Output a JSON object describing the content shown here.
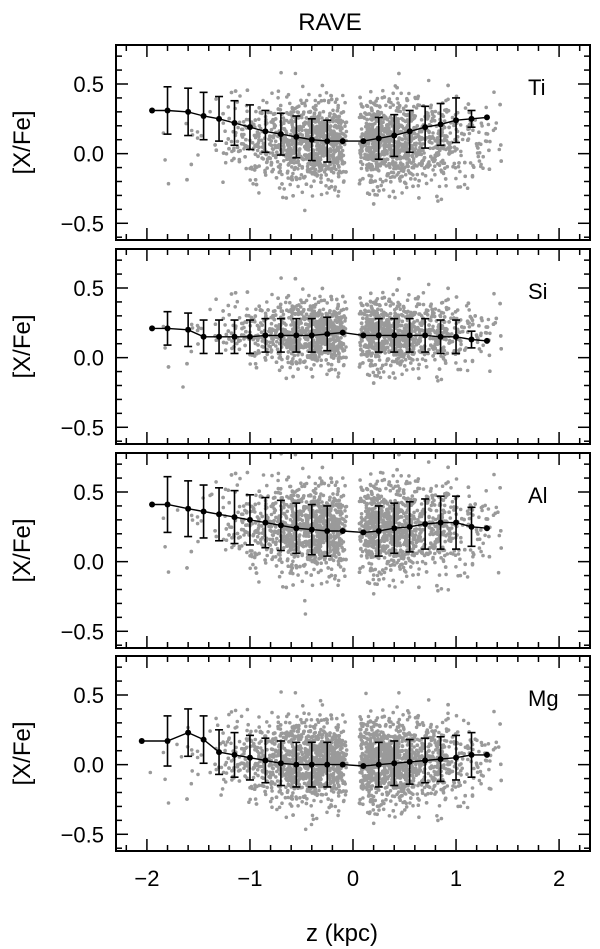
{
  "chart_data": {
    "type": "scatter",
    "title": "RAVE",
    "xlabel": "z (kpc)",
    "ylabel": "[X/Fe]",
    "xlim": [
      -2.3,
      2.3
    ],
    "ylim": [
      -0.62,
      0.78
    ],
    "xticks": [
      -2,
      -1,
      0,
      1,
      2
    ],
    "xticklabels": [
      "−2",
      "−1",
      "0",
      "1",
      "2"
    ],
    "yticks": [
      0.5,
      0.0,
      -0.5
    ],
    "yticklabels": [
      "0.5",
      "0.0",
      "−0.5"
    ],
    "grid": false,
    "panels": [
      {
        "label": "Ti",
        "cloud_center": 0.08,
        "cloud_spread": 0.15,
        "binned": {
          "x": [
            -1.95,
            -1.8,
            -1.6,
            -1.45,
            -1.3,
            -1.15,
            -1.0,
            -0.85,
            -0.7,
            -0.55,
            -0.4,
            -0.25,
            -0.1,
            0.1,
            0.25,
            0.4,
            0.55,
            0.7,
            0.85,
            1.0,
            1.15,
            1.3
          ],
          "y": [
            0.31,
            0.31,
            0.3,
            0.27,
            0.25,
            0.22,
            0.19,
            0.16,
            0.14,
            0.12,
            0.1,
            0.09,
            0.09,
            0.09,
            0.11,
            0.13,
            0.16,
            0.19,
            0.21,
            0.24,
            0.25,
            0.26
          ],
          "err": [
            0,
            0.17,
            0.17,
            0.17,
            0.16,
            0.16,
            0.16,
            0.15,
            0.15,
            0.15,
            0.15,
            0.15,
            0,
            0,
            0.15,
            0.15,
            0.15,
            0.15,
            0.15,
            0.16,
            0.06,
            0
          ]
        }
      },
      {
        "label": "Si",
        "cloud_center": 0.17,
        "cloud_spread": 0.12,
        "binned": {
          "x": [
            -1.95,
            -1.8,
            -1.6,
            -1.45,
            -1.3,
            -1.15,
            -1.0,
            -0.85,
            -0.7,
            -0.55,
            -0.4,
            -0.25,
            -0.1,
            0.1,
            0.25,
            0.4,
            0.55,
            0.7,
            0.85,
            1.0,
            1.15,
            1.3
          ],
          "y": [
            0.21,
            0.21,
            0.2,
            0.15,
            0.15,
            0.15,
            0.15,
            0.16,
            0.16,
            0.16,
            0.16,
            0.17,
            0.18,
            0.16,
            0.16,
            0.16,
            0.16,
            0.16,
            0.15,
            0.15,
            0.13,
            0.12
          ],
          "err": [
            0,
            0.12,
            0.12,
            0.12,
            0.12,
            0.12,
            0.12,
            0.12,
            0.12,
            0.12,
            0.12,
            0.12,
            0,
            0,
            0.12,
            0.12,
            0.12,
            0.12,
            0.12,
            0.12,
            0.06,
            0
          ]
        }
      },
      {
        "label": "Al",
        "cloud_center": 0.24,
        "cloud_spread": 0.16,
        "binned": {
          "x": [
            -1.95,
            -1.8,
            -1.6,
            -1.45,
            -1.3,
            -1.15,
            -1.0,
            -0.85,
            -0.7,
            -0.55,
            -0.4,
            -0.25,
            -0.1,
            0.1,
            0.25,
            0.4,
            0.55,
            0.7,
            0.85,
            1.0,
            1.15,
            1.3
          ],
          "y": [
            0.41,
            0.41,
            0.38,
            0.36,
            0.34,
            0.32,
            0.3,
            0.28,
            0.26,
            0.24,
            0.23,
            0.22,
            0.22,
            0.21,
            0.22,
            0.24,
            0.25,
            0.27,
            0.28,
            0.28,
            0.25,
            0.24
          ],
          "err": [
            0,
            0.2,
            0.2,
            0.19,
            0.19,
            0.19,
            0.18,
            0.18,
            0.18,
            0.18,
            0.18,
            0.18,
            0,
            0,
            0.18,
            0.18,
            0.18,
            0.18,
            0.19,
            0.19,
            0.14,
            0
          ]
        }
      },
      {
        "label": "Mg",
        "cloud_center": 0.02,
        "cloud_spread": 0.15,
        "binned": {
          "x": [
            -2.05,
            -1.8,
            -1.6,
            -1.45,
            -1.3,
            -1.15,
            -1.0,
            -0.85,
            -0.7,
            -0.55,
            -0.4,
            -0.25,
            -0.1,
            0.1,
            0.25,
            0.4,
            0.55,
            0.7,
            0.85,
            1.0,
            1.15,
            1.3
          ],
          "y": [
            0.17,
            0.17,
            0.23,
            0.18,
            0.09,
            0.07,
            0.05,
            0.03,
            0.01,
            0.0,
            0.0,
            0.0,
            0.0,
            -0.01,
            0.0,
            0.01,
            0.02,
            0.03,
            0.04,
            0.05,
            0.07,
            0.07
          ],
          "err": [
            0,
            0.18,
            0.17,
            0.17,
            0.16,
            0.16,
            0.16,
            0.16,
            0.16,
            0.16,
            0.16,
            0.16,
            0,
            0,
            0.16,
            0.16,
            0.16,
            0.16,
            0.16,
            0.16,
            0.16,
            0
          ]
        }
      }
    ],
    "colors": {
      "scatter": "#9a9a9a",
      "line": "#000000",
      "frame": "#000000"
    }
  }
}
